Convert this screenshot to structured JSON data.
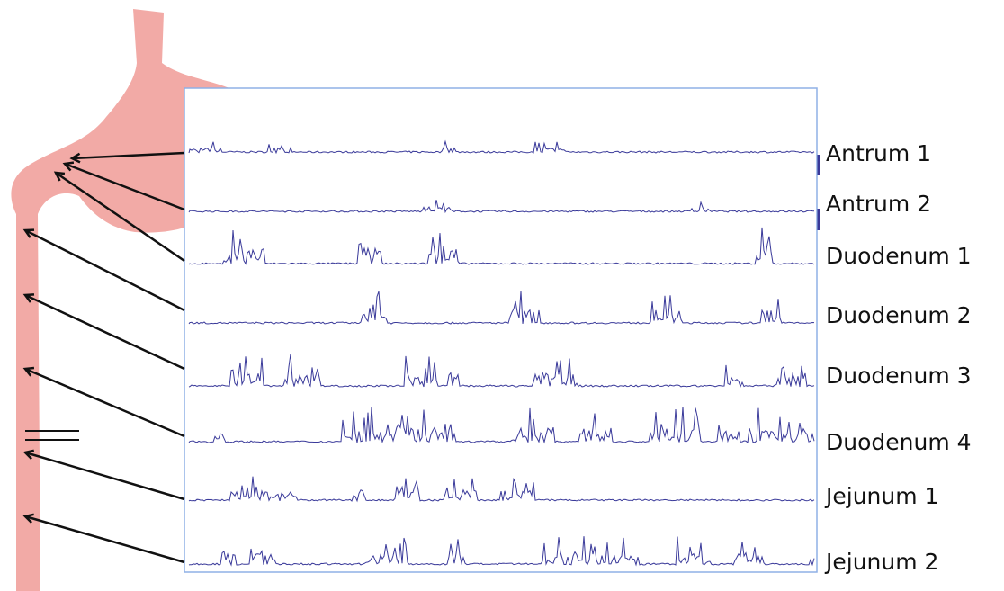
{
  "traces": [
    {
      "label": "Antrum 1"
    },
    {
      "label": "Antrum 2"
    },
    {
      "label": "Duodenum 1"
    },
    {
      "label": "Duodenum 2"
    },
    {
      "label": "Duodenum 3"
    },
    {
      "label": "Duodenum 4"
    },
    {
      "label": "Jejunum 1"
    },
    {
      "label": "Jejunum 2"
    }
  ]
}
